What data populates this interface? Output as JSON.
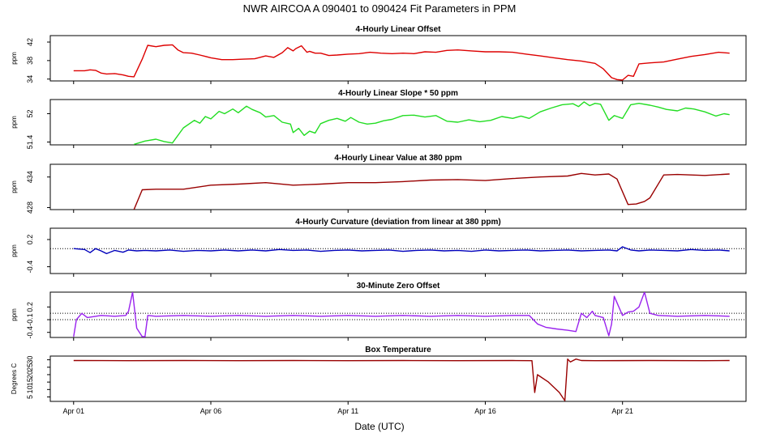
{
  "figure": {
    "title": "NWR   AIRCOA A   090401 to 090424   Fit Parameters in PPM",
    "xlabel": "Date (UTC)",
    "x_ticks": [
      {
        "label": "Apr 01",
        "day": 1
      },
      {
        "label": "Apr 06",
        "day": 6
      },
      {
        "label": "Apr 11",
        "day": 11
      },
      {
        "label": "Apr 16",
        "day": 16
      },
      {
        "label": "Apr 21",
        "day": 21
      }
    ],
    "x_range": [
      0.15,
      25.5
    ]
  },
  "chart_data": [
    {
      "type": "line",
      "title": "4-Hourly Linear Offset",
      "ylabel": "ppm",
      "color": "#dd0000",
      "ylim": [
        33.6,
        43.4
      ],
      "yticks": [
        34,
        38,
        42
      ],
      "ref_lines": [],
      "x": [
        1.0,
        1.4,
        1.6,
        1.8,
        2.0,
        2.2,
        2.5,
        2.8,
        3.0,
        3.2,
        3.5,
        3.7,
        4.0,
        4.3,
        4.6,
        4.8,
        5.0,
        5.3,
        5.6,
        6.0,
        6.4,
        6.8,
        7.2,
        7.6,
        8.0,
        8.3,
        8.6,
        8.8,
        9.0,
        9.1,
        9.3,
        9.5,
        9.6,
        9.8,
        10.0,
        10.3,
        10.6,
        11.0,
        11.4,
        11.8,
        12.2,
        12.6,
        13.0,
        13.4,
        13.8,
        14.2,
        14.6,
        15.0,
        15.5,
        16.0,
        16.5,
        17.0,
        17.5,
        18.0,
        18.5,
        19.0,
        19.5,
        20.0,
        20.3,
        20.6,
        20.8,
        21.0,
        21.2,
        21.4,
        21.6,
        22.0,
        22.5,
        23.0,
        23.5,
        24.0,
        24.5,
        24.9
      ],
      "values": [
        35.8,
        35.8,
        36.0,
        35.9,
        35.3,
        35.1,
        35.2,
        34.9,
        34.6,
        34.5,
        38.3,
        41.3,
        41.0,
        41.3,
        41.4,
        40.3,
        39.7,
        39.6,
        39.2,
        38.6,
        38.2,
        38.2,
        38.3,
        38.4,
        39.0,
        38.7,
        39.7,
        40.8,
        40.1,
        40.6,
        41.2,
        39.8,
        40.0,
        39.6,
        39.6,
        39.1,
        39.2,
        39.4,
        39.5,
        39.8,
        39.6,
        39.5,
        39.6,
        39.5,
        39.9,
        39.8,
        40.2,
        40.3,
        40.1,
        39.9,
        39.9,
        39.8,
        39.4,
        39.0,
        38.6,
        38.2,
        37.9,
        37.4,
        36.2,
        34.3,
        33.9,
        33.8,
        34.8,
        34.6,
        37.3,
        37.5,
        37.7,
        38.3,
        38.9,
        39.3,
        39.8,
        39.6
      ]
    },
    {
      "type": "line",
      "title": "4-Hourly Linear Slope * 50 ppm",
      "ylabel": "ppm",
      "color": "#22dd22",
      "ylim": [
        51.34,
        52.3
      ],
      "yticks": [
        51.4,
        52.0
      ],
      "ref_lines": [],
      "x": [
        3.2,
        3.6,
        4.0,
        4.3,
        4.6,
        5.0,
        5.4,
        5.6,
        5.8,
        6.0,
        6.3,
        6.5,
        6.8,
        7.0,
        7.3,
        7.5,
        7.8,
        8.0,
        8.3,
        8.6,
        8.9,
        9.0,
        9.2,
        9.4,
        9.6,
        9.8,
        10.0,
        10.3,
        10.6,
        10.9,
        11.1,
        11.4,
        11.7,
        12.0,
        12.3,
        12.6,
        13.0,
        13.4,
        13.8,
        14.2,
        14.6,
        15.0,
        15.4,
        15.8,
        16.2,
        16.6,
        17.0,
        17.3,
        17.6,
        18.0,
        18.4,
        18.8,
        19.2,
        19.4,
        19.6,
        19.8,
        20.0,
        20.2,
        20.5,
        20.7,
        21.0,
        21.3,
        21.6,
        22.0,
        22.3,
        22.6,
        23.0,
        23.3,
        23.6,
        24.0,
        24.4,
        24.7,
        24.9
      ],
      "values": [
        51.35,
        51.42,
        51.46,
        51.41,
        51.38,
        51.7,
        51.86,
        51.8,
        51.94,
        51.89,
        52.05,
        52.0,
        52.1,
        52.02,
        52.16,
        52.09,
        52.02,
        51.93,
        51.96,
        51.82,
        51.78,
        51.6,
        51.69,
        51.54,
        51.63,
        51.59,
        51.79,
        51.86,
        51.9,
        51.84,
        51.92,
        51.82,
        51.78,
        51.8,
        51.85,
        51.88,
        51.96,
        51.97,
        51.93,
        51.96,
        51.84,
        51.82,
        51.87,
        51.83,
        51.86,
        51.94,
        51.9,
        51.95,
        51.9,
        52.04,
        52.12,
        52.19,
        52.21,
        52.15,
        52.25,
        52.17,
        52.22,
        52.2,
        51.86,
        51.96,
        51.9,
        52.19,
        52.22,
        52.18,
        52.14,
        52.09,
        52.06,
        52.12,
        52.1,
        52.04,
        51.95,
        52.0,
        51.98
      ]
    },
    {
      "type": "line",
      "title": "4-Hourly Linear Value at 380 ppm",
      "ylabel": "ppm",
      "color": "#990000",
      "ylim": [
        427.6,
        436.5
      ],
      "yticks": [
        428,
        434
      ],
      "ref_lines": [],
      "x": [
        3.2,
        3.5,
        4.0,
        5.0,
        6.0,
        7.0,
        8.0,
        9.0,
        10.0,
        11.0,
        12.0,
        13.0,
        14.0,
        15.0,
        16.0,
        17.0,
        18.0,
        19.0,
        19.5,
        20.0,
        20.5,
        20.8,
        21.2,
        21.5,
        21.8,
        22.0,
        22.5,
        23.0,
        24.0,
        24.9
      ],
      "values": [
        427.6,
        431.5,
        431.6,
        431.6,
        432.4,
        432.6,
        432.9,
        432.4,
        432.6,
        432.9,
        432.9,
        433.1,
        433.4,
        433.5,
        433.3,
        433.7,
        434.0,
        434.2,
        434.7,
        434.4,
        434.6,
        433.6,
        428.6,
        428.7,
        429.2,
        429.9,
        434.4,
        434.5,
        434.3,
        434.6
      ]
    },
    {
      "type": "line",
      "title": "4-Hourly Curvature (deviation from linear at 380 ppm)",
      "ylabel": "ppm",
      "color": "#0000bb",
      "ylim": [
        -0.55,
        0.45
      ],
      "yticks": [
        -0.4,
        0.2
      ],
      "ref_lines": [
        0
      ],
      "x": [
        1.0,
        1.4,
        1.6,
        1.8,
        2.0,
        2.2,
        2.5,
        2.8,
        3.0,
        3.3,
        3.6,
        4.0,
        4.5,
        5.0,
        5.5,
        6.0,
        6.5,
        7.0,
        7.5,
        8.0,
        8.5,
        9.0,
        9.5,
        10.0,
        10.5,
        11.0,
        11.5,
        12.0,
        12.5,
        13.0,
        13.5,
        14.0,
        14.5,
        15.0,
        15.5,
        16.0,
        16.5,
        17.0,
        17.5,
        18.0,
        18.5,
        19.0,
        19.5,
        20.0,
        20.5,
        20.8,
        21.0,
        21.3,
        21.6,
        22.0,
        22.5,
        23.0,
        23.5,
        24.0,
        24.5,
        24.9
      ],
      "values": [
        0.0,
        -0.02,
        -0.09,
        0.0,
        -0.05,
        -0.11,
        -0.04,
        -0.08,
        -0.03,
        -0.05,
        -0.04,
        -0.05,
        -0.03,
        -0.06,
        -0.04,
        -0.05,
        -0.03,
        -0.05,
        -0.03,
        -0.05,
        -0.02,
        -0.04,
        -0.03,
        -0.06,
        -0.04,
        -0.03,
        -0.05,
        -0.04,
        -0.03,
        -0.06,
        -0.04,
        -0.03,
        -0.05,
        -0.04,
        -0.06,
        -0.03,
        -0.05,
        -0.04,
        -0.03,
        -0.05,
        -0.04,
        -0.03,
        -0.05,
        -0.04,
        -0.03,
        -0.05,
        0.04,
        -0.03,
        -0.05,
        -0.03,
        -0.04,
        -0.05,
        -0.02,
        -0.04,
        -0.03,
        -0.05
      ]
    },
    {
      "type": "line",
      "title": "30-Minute Zero Offset",
      "ylabel": "ppm",
      "color": "#9922ee",
      "ylim": [
        -0.52,
        0.55
      ],
      "yticks": [
        -0.4,
        -0.1,
        0.2
      ],
      "ref_lines": [
        0.05,
        -0.1
      ],
      "x": [
        1.0,
        1.1,
        1.3,
        1.5,
        2.0,
        2.5,
        2.9,
        3.0,
        3.15,
        3.3,
        3.5,
        3.6,
        3.7,
        4.0,
        5.0,
        6.0,
        7.0,
        8.0,
        9.0,
        10.0,
        11.0,
        12.0,
        13.0,
        14.0,
        15.0,
        16.0,
        17.0,
        17.6,
        17.9,
        18.2,
        18.6,
        19.0,
        19.3,
        19.5,
        19.7,
        19.9,
        20.0,
        20.3,
        20.5,
        20.6,
        20.7,
        21.0,
        21.2,
        21.4,
        21.6,
        21.8,
        22.0,
        22.3,
        23.0,
        24.0,
        24.9
      ],
      "values": [
        -0.5,
        -0.1,
        0.05,
        -0.05,
        0.0,
        -0.02,
        0.0,
        0.1,
        0.55,
        -0.3,
        -0.5,
        -0.5,
        0.0,
        -0.02,
        0.0,
        -0.02,
        0.0,
        -0.02,
        0.0,
        -0.02,
        0.0,
        -0.02,
        0.0,
        -0.02,
        0.0,
        -0.02,
        0.0,
        0.0,
        -0.2,
        -0.28,
        -0.32,
        -0.35,
        -0.38,
        0.05,
        -0.05,
        0.1,
        0.0,
        -0.05,
        -0.48,
        -0.2,
        0.45,
        0.0,
        0.08,
        0.1,
        0.2,
        0.55,
        0.05,
        0.0,
        -0.02,
        0.0,
        -0.02
      ]
    },
    {
      "type": "line",
      "title": "Box Temperature",
      "ylabel": "Degrees C",
      "color": "#990000",
      "ylim": [
        2.0,
        32.5
      ],
      "yticks": [
        5,
        10,
        15,
        20,
        25,
        30
      ],
      "ref_lines": [],
      "x": [
        1.0,
        3.0,
        5.0,
        7.0,
        9.0,
        11.0,
        13.0,
        15.0,
        17.0,
        17.7,
        17.8,
        17.9,
        18.3,
        18.7,
        18.9,
        19.0,
        19.1,
        19.3,
        19.5,
        20.0,
        22.0,
        24.0,
        24.9
      ],
      "values": [
        29.5,
        29.4,
        29.5,
        29.4,
        29.5,
        29.4,
        29.5,
        29.4,
        29.5,
        29.4,
        8.0,
        20.0,
        15.0,
        8.0,
        2.5,
        30.5,
        28.5,
        30.5,
        29.5,
        29.4,
        29.5,
        29.4,
        29.5
      ]
    }
  ]
}
